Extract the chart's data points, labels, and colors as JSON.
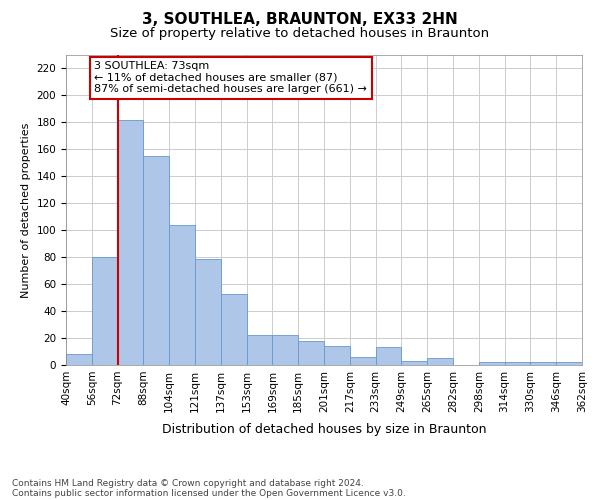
{
  "title": "3, SOUTHLEA, BRAUNTON, EX33 2HN",
  "subtitle": "Size of property relative to detached houses in Braunton",
  "xlabel": "Distribution of detached houses by size in Braunton",
  "ylabel": "Number of detached properties",
  "bar_values": [
    8,
    80,
    182,
    155,
    104,
    79,
    53,
    22,
    22,
    18,
    14,
    6,
    13,
    3,
    5,
    0,
    2,
    2,
    2,
    2
  ],
  "categories": [
    "40sqm",
    "56sqm",
    "72sqm",
    "88sqm",
    "104sqm",
    "121sqm",
    "137sqm",
    "153sqm",
    "169sqm",
    "185sqm",
    "201sqm",
    "217sqm",
    "233sqm",
    "249sqm",
    "265sqm",
    "282sqm",
    "298sqm",
    "314sqm",
    "330sqm",
    "346sqm",
    "362sqm"
  ],
  "bar_color": "#aec6e8",
  "bar_edge_color": "#6699cc",
  "property_line_x": 2,
  "property_line_color": "#cc0000",
  "annotation_text": "3 SOUTHLEA: 73sqm\n← 11% of detached houses are smaller (87)\n87% of semi-detached houses are larger (661) →",
  "annotation_box_color": "#ffffff",
  "annotation_box_edge_color": "#cc0000",
  "ylim": [
    0,
    230
  ],
  "yticks": [
    0,
    20,
    40,
    60,
    80,
    100,
    120,
    140,
    160,
    180,
    200,
    220
  ],
  "grid_color": "#cccccc",
  "footer1": "Contains HM Land Registry data © Crown copyright and database right 2024.",
  "footer2": "Contains public sector information licensed under the Open Government Licence v3.0.",
  "bg_color": "#ffffff",
  "title_fontsize": 11,
  "subtitle_fontsize": 9.5,
  "xlabel_fontsize": 9,
  "ylabel_fontsize": 8,
  "tick_fontsize": 7.5,
  "annotation_fontsize": 8,
  "footer_fontsize": 6.5
}
